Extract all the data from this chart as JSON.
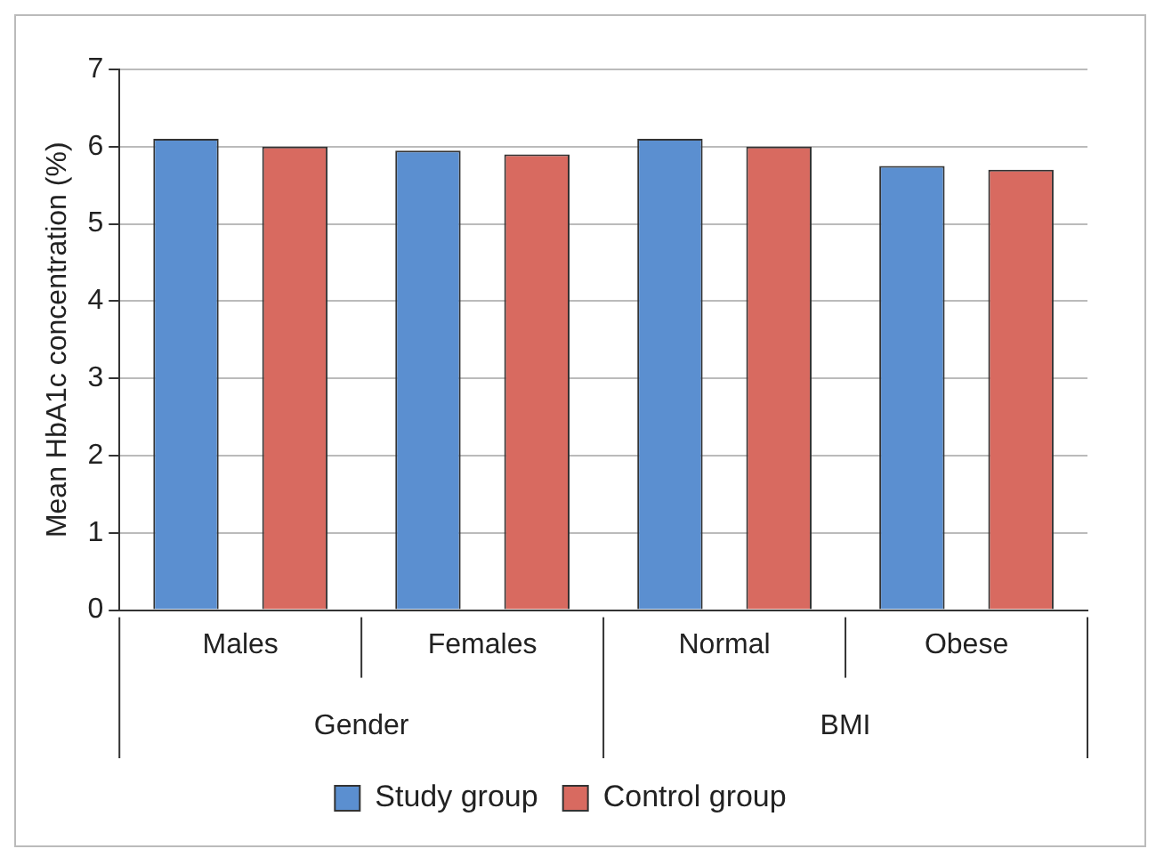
{
  "chart_data": {
    "type": "bar",
    "ylabel": "Mean HbA1c concentration (%)",
    "categories": [
      "Males",
      "Females",
      "Normal",
      "Obese"
    ],
    "series": [
      {
        "name": "Study group",
        "color": "#5b8fd0",
        "values": [
          6.1,
          5.95,
          6.1,
          5.75
        ]
      },
      {
        "name": "Control group",
        "color": "#d86a60",
        "values": [
          6.0,
          5.9,
          6.0,
          5.7
        ]
      }
    ],
    "annotations": [
      "Gender",
      "BMI"
    ],
    "ylim": [
      0,
      7
    ],
    "yticks": [
      0,
      1,
      2,
      3,
      4,
      5,
      6,
      7
    ],
    "grid": "y",
    "legend": "bottom"
  }
}
